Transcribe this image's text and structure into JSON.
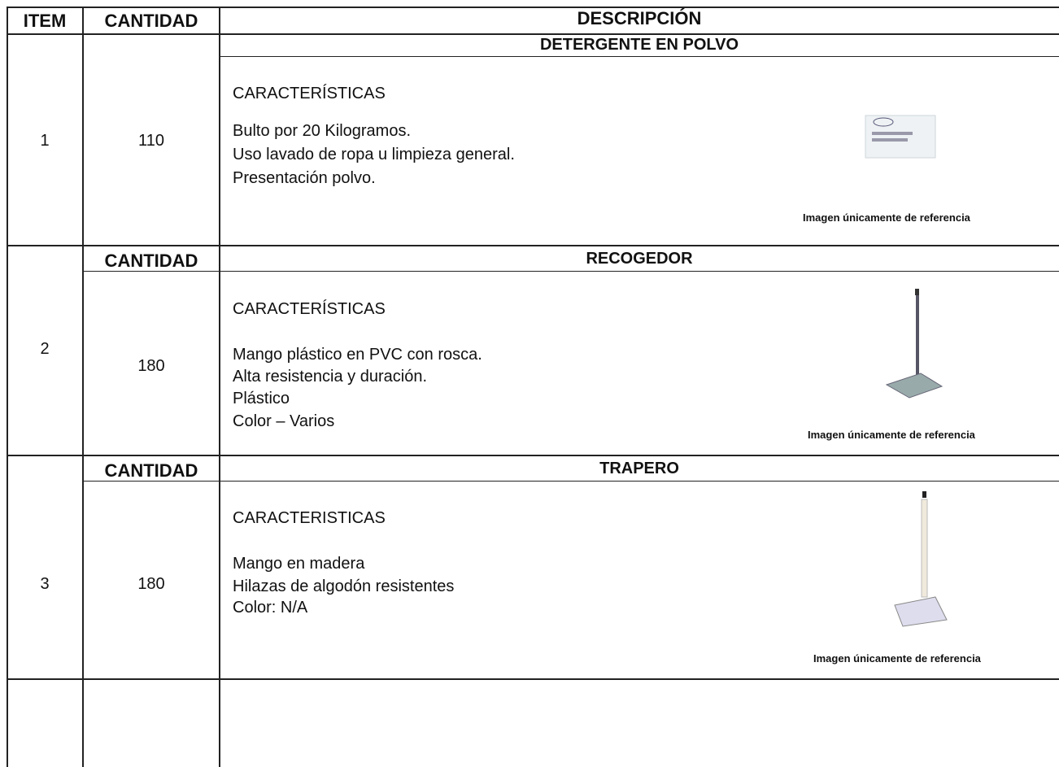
{
  "header": {
    "item": "ITEM",
    "quantity": "CANTIDAD",
    "description": "DESCRIPCIÓN"
  },
  "items": [
    {
      "number": 1,
      "quantity": 110,
      "name": "DETERGENTE EN POLVO",
      "features_title": "CARACTERÍSTICAS",
      "features": [
        "Bulto por 20 Kilogramos.",
        "Uso lavado de ropa u limpieza general.",
        "Presentación polvo."
      ],
      "image_caption": "Imagen únicamente de referencia"
    },
    {
      "number": 2,
      "quantity_header": "CANTIDAD",
      "quantity": 180,
      "name": "RECOGEDOR",
      "features_title": "CARACTERÍSTICAS",
      "features": [
        "Mango plástico en PVC con rosca.",
        "Alta resistencia y duración.",
        "Plástico",
        "Color – Varios"
      ],
      "image_caption": "Imagen únicamente de referencia"
    },
    {
      "number": 3,
      "quantity_header": "CANTIDAD",
      "quantity": 180,
      "name": "TRAPERO",
      "features_title": "CARACTERISTICAS",
      "features": [
        "Mango en madera",
        "Hilazas de algodón resistentes",
        "Color: N/A"
      ],
      "image_caption": "Imagen únicamente de referencia"
    }
  ]
}
